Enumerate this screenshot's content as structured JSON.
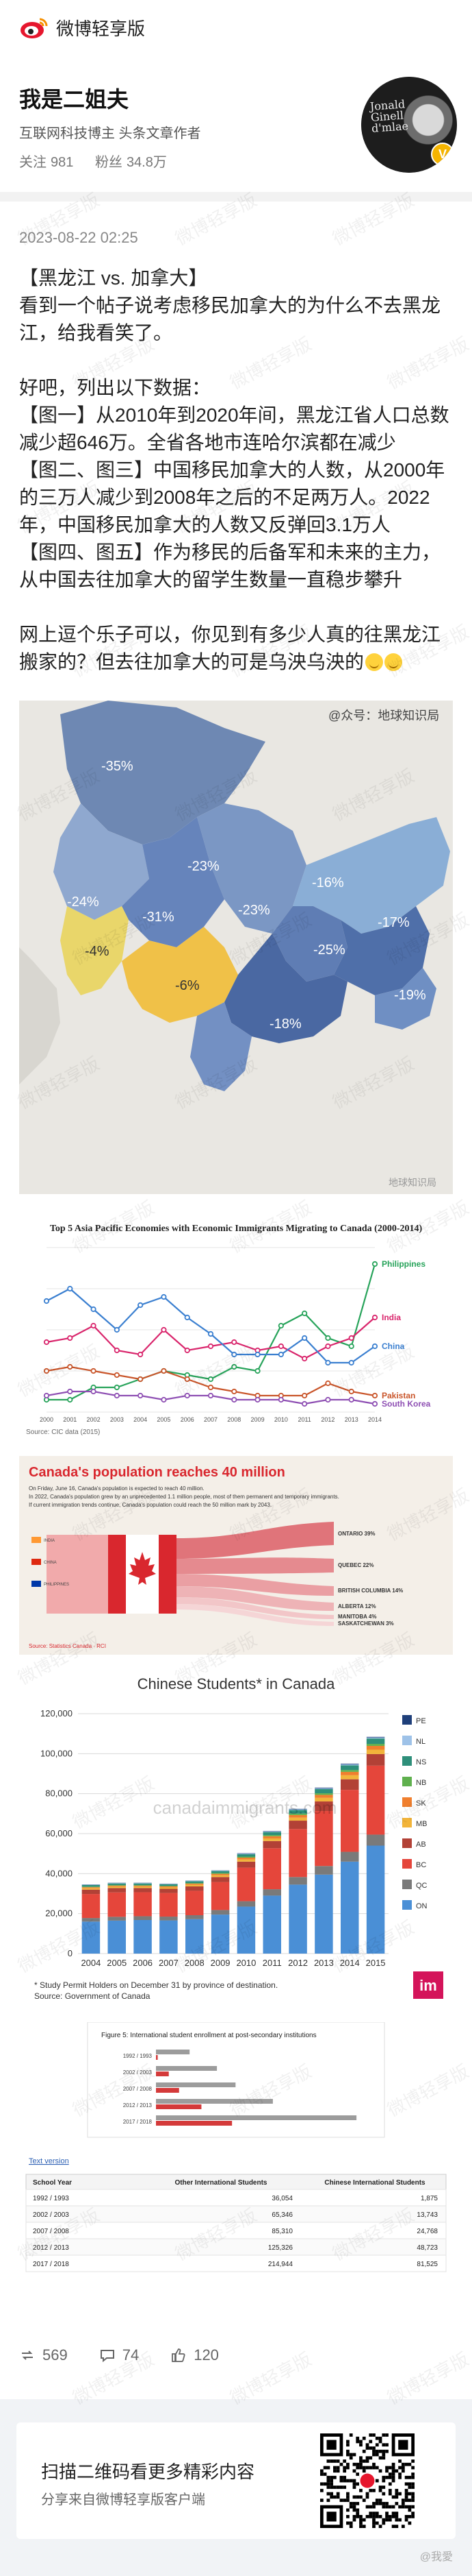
{
  "app": {
    "brand": "微博轻享版"
  },
  "author": {
    "name": "我是二姐夫",
    "desc": "互联网科技博主 头条文章作者",
    "follow_label": "关注",
    "follow_count": "981",
    "fans_label": "粉丝",
    "fans_count": "34.8万"
  },
  "post": {
    "time": "2023-08-22 02:25",
    "paragraphs": [
      "【黑龙江 vs. 加拿大】",
      "看到一个帖子说考虑移民加拿大的为什么不去黑龙江，给我看笑了。",
      "",
      "好吧，列出以下数据：",
      "【图一】从2010年到2020年间，黑龙江省人口总数减少超646万。全省各地市连哈尔滨都在减少",
      "【图二、图三】中国移民加拿大的人数，从2000年的三万人减少到2008年之后的不足两万人。2022年，中国移民加拿大的人数又反弹回3.1万人",
      "【图四、图五】作为移民的后备军和未来的主力，从中国去往加拿大的留学生数量一直稳步攀升",
      "",
      "网上逗个乐子可以，你见到有多少人真的往黑龙江搬家的？但去往加拿大的可是乌泱乌泱的"
    ]
  },
  "images": {
    "map": {
      "credit": "@众号：地球知识局",
      "labels": [
        "-35%",
        "-23%",
        "-24%",
        "-4%",
        "-31%",
        "-23%",
        "-16%",
        "-17%",
        "-6%",
        "-25%",
        "-19%",
        "-18%"
      ],
      "bottom_credit": "地球知识局"
    },
    "immigrants_chart": {
      "chart_data": {
        "type": "line",
        "title": "Top 5 Asia Pacific Economies with Economic Immigrants Migrating to Canada (2000-2014)",
        "x": [
          "2000",
          "2001",
          "2002",
          "2003",
          "2004",
          "2005",
          "2006",
          "2007",
          "2008",
          "2009",
          "2010",
          "2011",
          "2012",
          "2013",
          "2014"
        ],
        "series": [
          {
            "name": "Philippines",
            "color": "#27a35a",
            "values": [
              3,
              3,
              6,
              6,
              8,
              10,
              9,
              8,
              11,
              10,
              21,
              24,
              18,
              16,
              36
            ]
          },
          {
            "name": "India",
            "color": "#d9256c",
            "values": [
              17,
              18,
              21,
              15,
              14,
              20,
              15,
              16,
              17,
              15,
              16,
              13,
              16,
              18,
              23
            ]
          },
          {
            "name": "China",
            "color": "#3a7fd0",
            "values": [
              27,
              30,
              25,
              20,
              26,
              28,
              23,
              19,
              14,
              14,
              14,
              18,
              12,
              12,
              16
            ]
          },
          {
            "name": "Pakistan",
            "color": "#c9552a",
            "values": [
              10,
              11,
              10,
              9,
              8,
              10,
              8,
              6,
              5,
              4,
              4,
              4,
              7,
              5,
              4
            ]
          },
          {
            "name": "South Korea",
            "color": "#8e4fb3",
            "values": [
              4,
              5,
              5,
              4,
              4,
              3,
              4,
              4,
              3,
              3,
              3,
              2,
              3,
              3,
              2
            ]
          }
        ],
        "ylim": [
          0,
          40
        ],
        "source": "Source: CIC data (2015)"
      }
    },
    "canada_pop": {
      "title": "Canada's population reaches 40 million",
      "subtitle": "On Friday, June 16, Canada's population is expected to reach 40 million.",
      "line2": "In 2022, Canada's population grew by an unprecedented 1.1 million people, most of them permanent and temporary immigrants.",
      "line3": "If current immigration trends continue, Canada's population could reach the 50 million mark by 2043.",
      "source": "Source: Statistics Canada · RCI",
      "flows": [
        "ONTARIO 39%",
        "QUEBEC 22%",
        "BRITISH COLUMBIA 14%",
        "ALBERTA 12%",
        "MANITOBA 4%",
        "SASKATCHEWAN 3%"
      ],
      "origins": [
        "INDIA",
        "CHINA",
        "PHILIPPINES"
      ]
    },
    "students_chart": {
      "chart_data": {
        "type": "bar",
        "title": "Chinese Students* in Canada",
        "categories": [
          "2004",
          "2005",
          "2006",
          "2007",
          "2008",
          "2009",
          "2010",
          "2011",
          "2012",
          "2013",
          "2014",
          "2015"
        ],
        "stacked": true,
        "series": [
          {
            "name": "ON",
            "color": "#4a8fd6",
            "values": [
              16000,
              16500,
              16800,
              16600,
              17200,
              19500,
              23500,
              29000,
              34500,
              39500,
              46000,
              54000
            ]
          },
          {
            "name": "QC",
            "color": "#7a7a7a",
            "values": [
              1800,
              1900,
              1900,
              1900,
              2000,
              2300,
              2700,
              3200,
              3800,
              4300,
              4900,
              5500
            ]
          },
          {
            "name": "BC",
            "color": "#e5463b",
            "values": [
              12000,
              12200,
              12000,
              11800,
              12200,
              14000,
              16800,
              20500,
              24000,
              27500,
              31000,
              34500
            ]
          },
          {
            "name": "AB",
            "color": "#b24136",
            "values": [
              2200,
              2200,
              2100,
              2100,
              2200,
              2500,
              3000,
              3600,
              4200,
              4800,
              5300,
              5800
            ]
          },
          {
            "name": "MB",
            "color": "#f2b43a",
            "values": [
              700,
              700,
              700,
              700,
              800,
              900,
              1100,
              1300,
              1500,
              1800,
              2000,
              2200
            ]
          },
          {
            "name": "SK",
            "color": "#f07f2e",
            "values": [
              500,
              500,
              500,
              500,
              600,
              700,
              900,
              1100,
              1300,
              1500,
              1700,
              1900
            ]
          },
          {
            "name": "NB",
            "color": "#5fb04e",
            "values": [
              300,
              300,
              300,
              300,
              300,
              400,
              500,
              600,
              700,
              800,
              900,
              1000
            ]
          },
          {
            "name": "NS",
            "color": "#2e8f7a",
            "values": [
              800,
              800,
              800,
              800,
              900,
              1000,
              1200,
              1500,
              1800,
              2100,
              2400,
              2700
            ]
          },
          {
            "name": "NL",
            "color": "#9ec2e8",
            "values": [
              200,
              200,
              200,
              200,
              200,
              200,
              300,
              300,
              400,
              400,
              500,
              500
            ]
          },
          {
            "name": "PE",
            "color": "#1f3f7a",
            "values": [
              100,
              100,
              100,
              100,
              100,
              100,
              200,
              200,
              200,
              300,
              300,
              300
            ]
          }
        ],
        "legend": [
          "PE",
          "NL",
          "NS",
          "NB",
          "SK",
          "MB",
          "AB",
          "BC",
          "QC",
          "ON"
        ],
        "ylim": [
          0,
          120000
        ],
        "yticks": [
          "0",
          "20,000",
          "40,000",
          "60,000",
          "80,000",
          "100,000",
          "120,000"
        ],
        "watermark": "canadaimmigrants.com",
        "footnote": "* Study Permit Holders on December 31 by province of destination.",
        "source": "Source: Government of Canada",
        "logo": "im"
      }
    },
    "enrollment": {
      "figure_title": "Figure 5: International student enrollment at post-secondary institutions",
      "table_link": "Text version",
      "columns": [
        "School Year",
        "Other International Students",
        "Chinese International Students"
      ],
      "rows": [
        [
          "1992 / 1993",
          "36,054",
          "1,875"
        ],
        [
          "2002 / 2003",
          "65,346",
          "13,743"
        ],
        [
          "2007 / 2008",
          "85,310",
          "24,768"
        ],
        [
          "2012 / 2013",
          "125,326",
          "48,723"
        ],
        [
          "2017 / 2018",
          "214,944",
          "81,525"
        ]
      ],
      "chart_data": {
        "type": "bar",
        "categories": [
          "1992 / 1993",
          "2002 / 2003",
          "2007 / 2008",
          "2012 / 2013",
          "2017 / 2018"
        ],
        "series": [
          {
            "name": "Other International Students",
            "values": [
              36054,
              65346,
              85310,
              125326,
              214944
            ]
          },
          {
            "name": "Chinese International Students",
            "values": [
              1875,
              13743,
              24768,
              48723,
              81525
            ]
          }
        ]
      }
    }
  },
  "actions": {
    "reposts": "569",
    "comments": "74",
    "likes": "120"
  },
  "footer": {
    "title": "扫描二维码看更多精彩内容",
    "subtitle": "分享来自微博轻享版客户端",
    "credit": "@我愛"
  },
  "watermark_text": "微博轻享版"
}
